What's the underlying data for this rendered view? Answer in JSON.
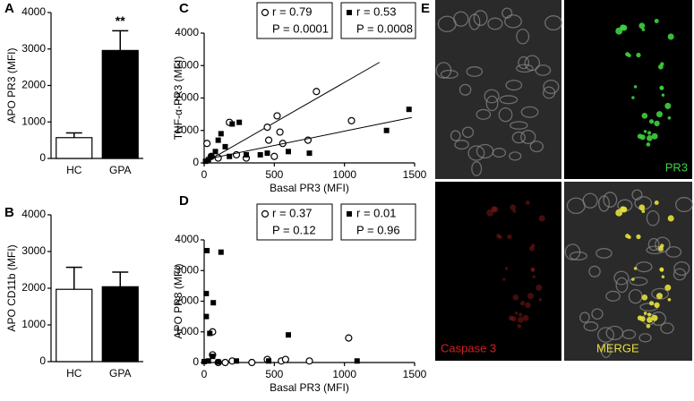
{
  "chart_data": [
    {
      "type": "bar",
      "panel_label": "A",
      "ylabel": "APO PR3 (MFI)",
      "annotation": "**",
      "categories": [
        "HC",
        "GPA"
      ],
      "values": [
        570,
        2960
      ],
      "errors": [
        130,
        540
      ],
      "colors": [
        "#ffffff",
        "#000000"
      ],
      "ylim": [
        0,
        4000
      ],
      "yticks": [
        0,
        1000,
        2000,
        3000,
        4000
      ]
    },
    {
      "type": "bar",
      "panel_label": "B",
      "ylabel": "APO CD11b (MFI)",
      "categories": [
        "HC",
        "GPA"
      ],
      "values": [
        1970,
        2040
      ],
      "errors": [
        600,
        400
      ],
      "colors": [
        "#ffffff",
        "#000000"
      ],
      "ylim": [
        0,
        4000
      ],
      "yticks": [
        0,
        1000,
        2000,
        3000,
        4000
      ]
    },
    {
      "type": "scatter",
      "panel_label": "C",
      "xlabel": "Basal PR3 (MFI)",
      "ylabel": "TNF-α-PR3 (MFI)",
      "xlim": [
        0,
        1500
      ],
      "xticks": [
        0,
        500,
        1000,
        1500
      ],
      "ylim": [
        0,
        4000
      ],
      "yticks": [
        0,
        1000,
        2000,
        3000,
        4000
      ],
      "series": [
        {
          "marker": "circle-open",
          "color": "#000000",
          "stats": [
            "r = 0.79",
            "P = 0.0001"
          ],
          "x": [
            20,
            50,
            100,
            180,
            230,
            300,
            450,
            460,
            500,
            520,
            540,
            560,
            740,
            800,
            1050
          ],
          "y": [
            600,
            200,
            150,
            1250,
            250,
            150,
            1100,
            700,
            200,
            1450,
            950,
            600,
            700,
            2200,
            1300
          ],
          "trend": {
            "x": [
              0,
              1250
            ],
            "y": [
              0,
              3100
            ]
          }
        },
        {
          "marker": "square-filled",
          "color": "#000000",
          "stats": [
            "r = 0.53",
            "P = 0.0008"
          ],
          "x": [
            10,
            30,
            50,
            80,
            100,
            120,
            150,
            180,
            200,
            250,
            300,
            400,
            450,
            600,
            750,
            1300,
            1460
          ],
          "y": [
            50,
            100,
            200,
            350,
            700,
            900,
            500,
            200,
            1200,
            1250,
            250,
            250,
            300,
            350,
            300,
            1000,
            1650
          ],
          "trend": {
            "x": [
              0,
              1480
            ],
            "y": [
              100,
              1400
            ]
          }
        }
      ]
    },
    {
      "type": "scatter",
      "panel_label": "D",
      "xlabel": "Basal PR3 (MFI)",
      "ylabel": "APO PR3 (MFI)",
      "xlim": [
        0,
        1500
      ],
      "xticks": [
        0,
        500,
        1000,
        1500
      ],
      "ylim": [
        0,
        4000
      ],
      "yticks": [
        0,
        1000,
        2000,
        3000,
        4000
      ],
      "series": [
        {
          "marker": "circle-open",
          "color": "#000000",
          "stats": [
            "r = 0.37",
            "P = 0.12"
          ],
          "x": [
            60,
            60,
            100,
            150,
            200,
            340,
            450,
            550,
            580,
            750,
            1030
          ],
          "y": [
            1000,
            250,
            0,
            0,
            50,
            0,
            100,
            50,
            100,
            50,
            800
          ]
        },
        {
          "marker": "square-filled",
          "color": "#000000",
          "stats": [
            "r = 0.01",
            "P = 0.96"
          ],
          "x": [
            20,
            120,
            15,
            15,
            65,
            40,
            60,
            600,
            0,
            30,
            100,
            230,
            460,
            1090
          ],
          "y": [
            3650,
            3600,
            2250,
            1500,
            1950,
            950,
            200,
            900,
            30,
            50,
            20,
            50,
            50,
            50
          ]
        }
      ]
    }
  ],
  "panel_e": {
    "label": "E",
    "captions": [
      "PR3",
      "Caspase 3",
      "MERGE"
    ]
  }
}
